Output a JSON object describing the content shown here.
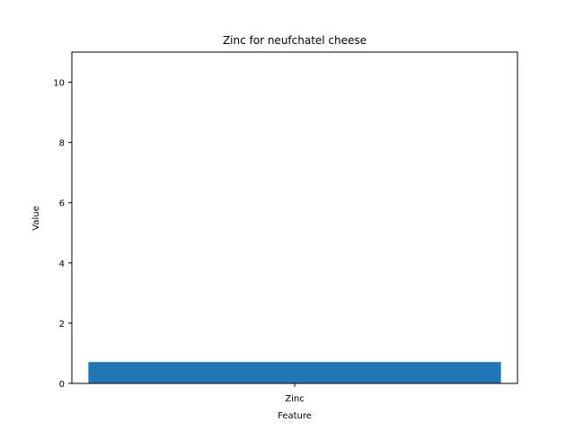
{
  "chart_data": {
    "type": "bar",
    "title": "Zinc for neufchatel cheese",
    "xlabel": "Feature",
    "ylabel": "Value",
    "categories": [
      "Zinc"
    ],
    "values": [
      0.71
    ],
    "ylim": [
      0,
      11
    ],
    "yticks": [
      0,
      2,
      4,
      6,
      8,
      10
    ],
    "bar_color": "#1f77b4",
    "grid": false,
    "legend": "none"
  }
}
